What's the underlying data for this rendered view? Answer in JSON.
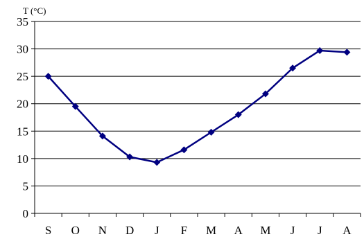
{
  "chart_data": {
    "type": "line",
    "title": "",
    "xlabel": "",
    "ylabel": "T (°C)",
    "categories": [
      "S",
      "O",
      "N",
      "D",
      "J",
      "F",
      "M",
      "A",
      "M",
      "J",
      "J",
      "A"
    ],
    "series": [
      {
        "values": [
          25.0,
          19.5,
          14.1,
          10.3,
          9.3,
          11.6,
          14.8,
          18.0,
          21.8,
          26.5,
          29.7,
          29.4
        ]
      }
    ],
    "ylim": [
      0,
      35
    ],
    "yticks": [
      0,
      5,
      10,
      15,
      20,
      25,
      30,
      35
    ],
    "grid": "horizontal",
    "colors": {
      "line": "#000080",
      "marker": "#000080",
      "grid": "#000000",
      "axis": "#000000"
    },
    "marker": "diamond"
  }
}
